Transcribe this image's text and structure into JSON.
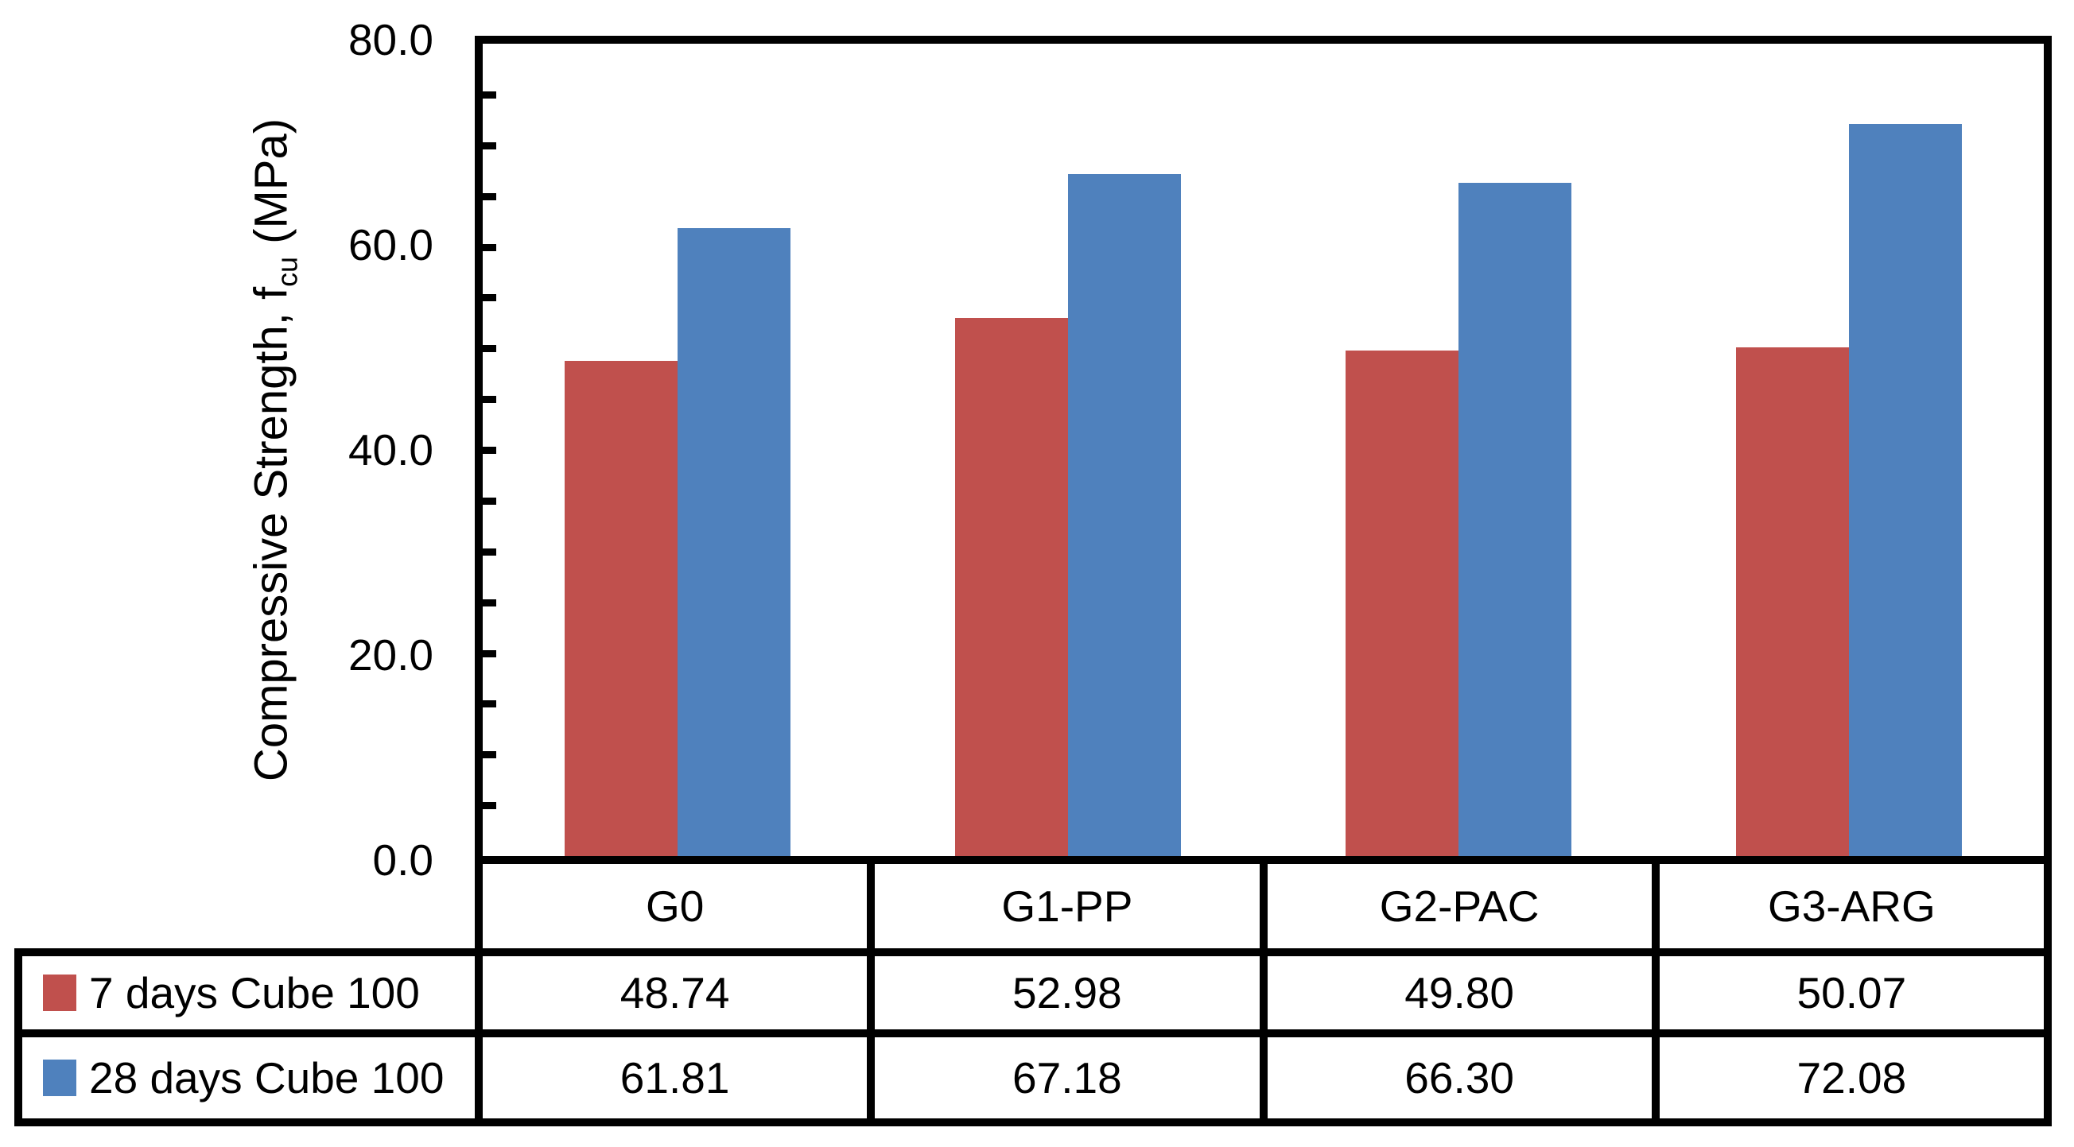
{
  "chart_data": {
    "type": "bar",
    "categories": [
      "G0",
      "G1-PP",
      "G2-PAC",
      "G3-ARG"
    ],
    "series": [
      {
        "name": "7 days Cube 100",
        "color": "#C0504D",
        "values": [
          48.74,
          52.98,
          49.8,
          50.07
        ],
        "display": [
          "48.74",
          "52.98",
          "49.80",
          "50.07"
        ]
      },
      {
        "name": "28 days Cube 100",
        "color": "#4F81BD",
        "values": [
          61.81,
          67.18,
          66.3,
          72.08
        ],
        "display": [
          "61.81",
          "67.18",
          "66.30",
          "72.08"
        ]
      }
    ],
    "title": "",
    "xlabel": "",
    "ylabel_parts": {
      "prefix": "Compressive Strength, f",
      "subscript": "cu",
      "suffix": " (MPa)"
    },
    "ylim": [
      0,
      80
    ],
    "ytick_values": [
      0,
      20,
      40,
      60,
      80
    ],
    "ytick_labels": [
      "0.0",
      "20.0",
      "40.0",
      "60.0",
      "80.0"
    ],
    "minor_tick_step": 5,
    "grid": false,
    "legend_position": "table-left",
    "colors": {
      "series1": "#C0504D",
      "series2": "#4F81BD",
      "axis": "#000000",
      "background": "#FFFFFF"
    }
  }
}
